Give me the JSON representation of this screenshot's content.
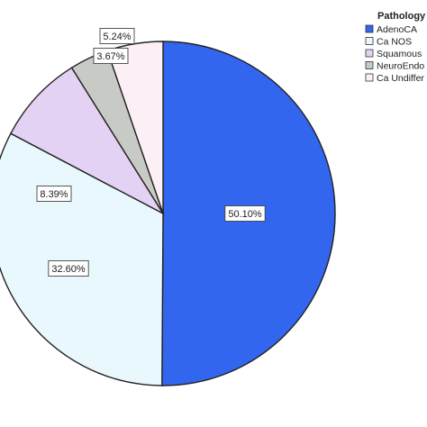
{
  "chart_data": {
    "type": "pie",
    "legend_title": "Pathology",
    "legend_position": "top-right",
    "slices": [
      {
        "name": "AdenoCA",
        "value": 50.1,
        "label": "50.10%",
        "color": "#3366ee"
      },
      {
        "name": "Ca NOS",
        "value": 32.6,
        "label": "32.60%",
        "color": "#e8f8fc"
      },
      {
        "name": "Squamous",
        "value": 8.39,
        "label": "8.39%",
        "color": "#e4d2f4"
      },
      {
        "name": "NeuroEndo",
        "value": 3.67,
        "label": "3.67%",
        "color": "#c8cac6"
      },
      {
        "name": "Ca Undiffer",
        "value": 5.24,
        "label": "5.24%",
        "color": "#fcf0f6"
      }
    ]
  }
}
